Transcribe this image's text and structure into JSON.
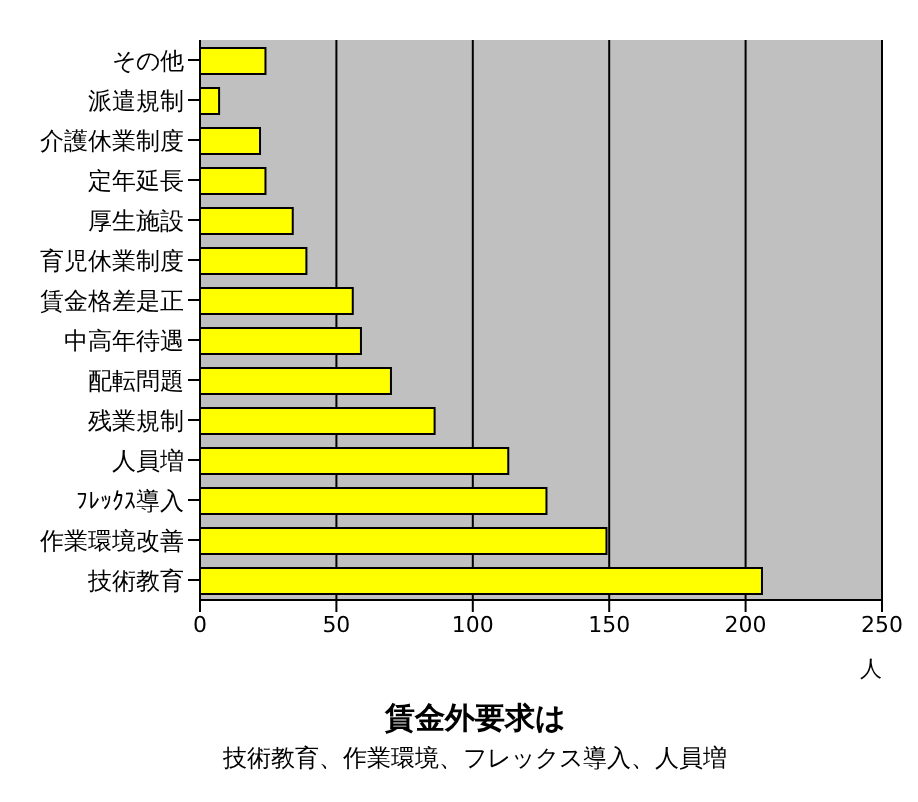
{
  "chart_data": {
    "type": "bar",
    "orientation": "horizontal",
    "title": "賃金外要求は",
    "subtitle": "技術教育、作業環境、フレックス導入、人員増",
    "xlabel": "人",
    "categories": [
      "その他",
      "派遣規制",
      "介護休業制度",
      "定年延長",
      "厚生施設",
      "育児休業制度",
      "賃金格差是正",
      "中高年待遇",
      "配転問題",
      "残業規制",
      "人員増",
      "ﾌﾚｯｸｽ導入",
      "作業環境改善",
      "技術教育"
    ],
    "values": [
      24,
      7,
      22,
      24,
      34,
      39,
      56,
      59,
      70,
      86,
      113,
      127,
      149,
      206
    ],
    "color": "#ffff00",
    "xlim": [
      0,
      250
    ],
    "xticks": [
      0,
      50,
      100,
      150,
      200,
      250
    ],
    "grid": "x"
  }
}
